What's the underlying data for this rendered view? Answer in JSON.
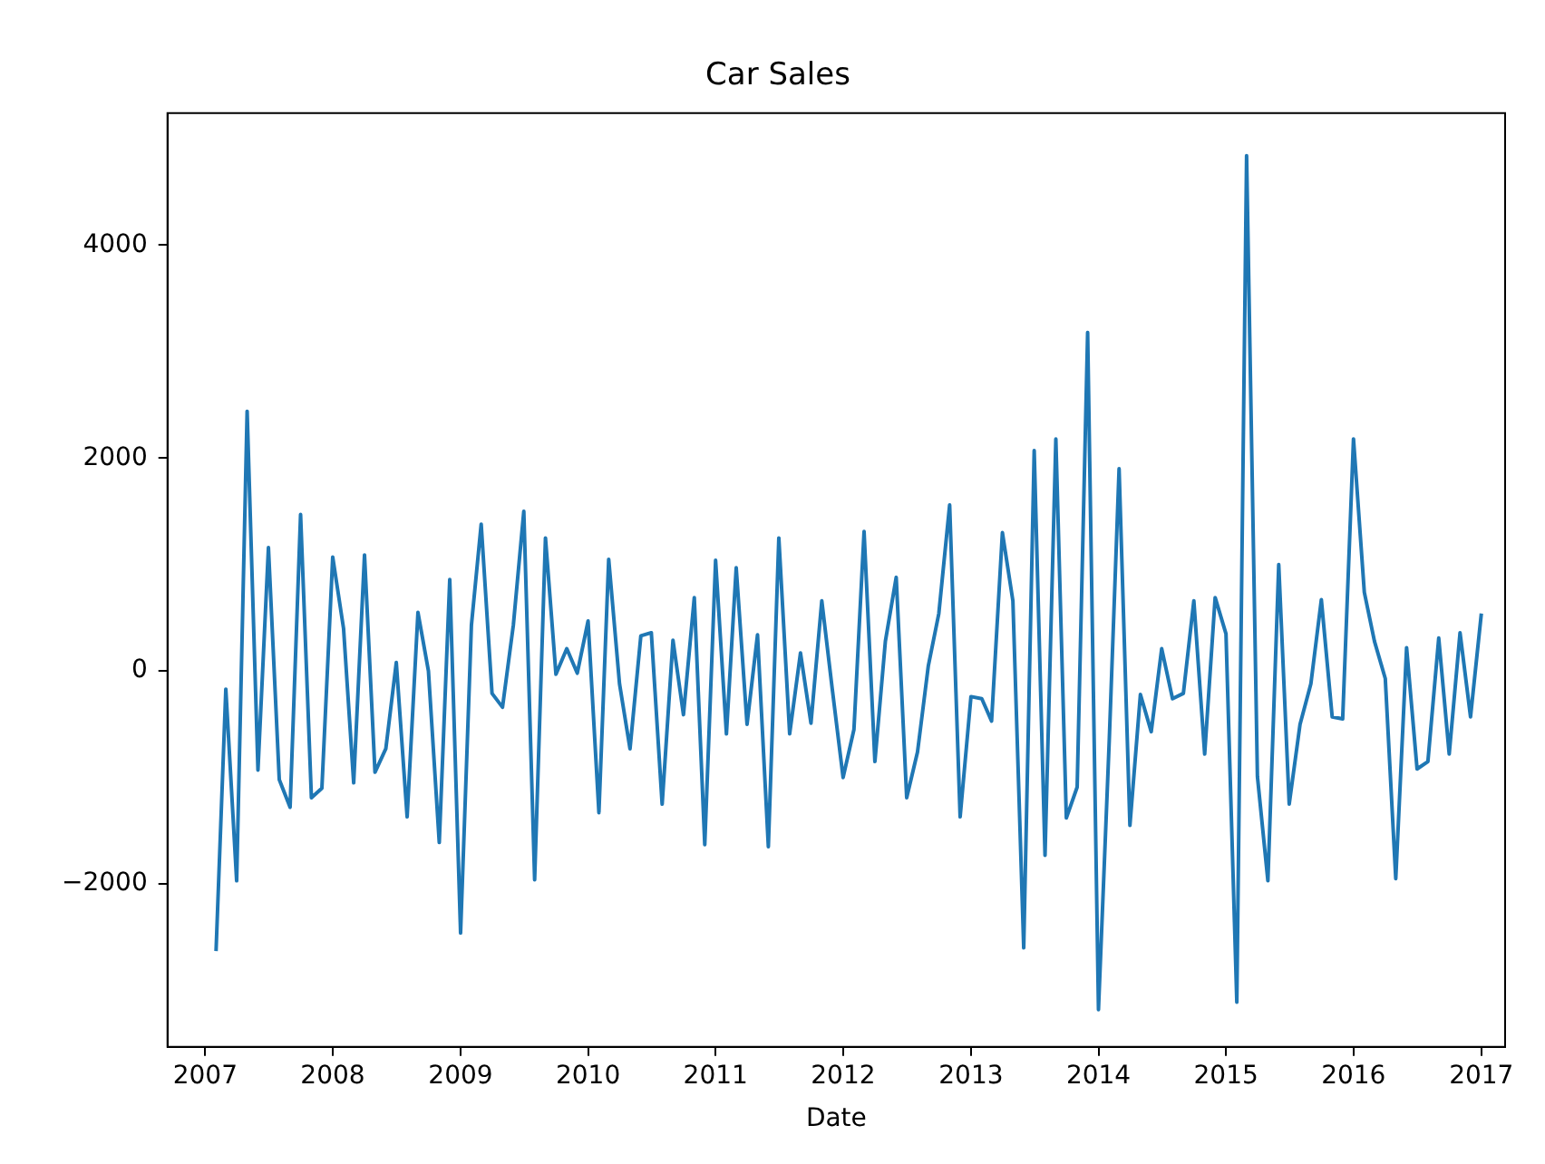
{
  "chart_data": {
    "type": "line",
    "title": "Car Sales",
    "xlabel": "Date",
    "x": [
      "2007-02",
      "2007-03",
      "2007-04",
      "2007-05",
      "2007-06",
      "2007-07",
      "2007-08",
      "2007-09",
      "2007-10",
      "2007-11",
      "2007-12",
      "2008-01",
      "2008-02",
      "2008-03",
      "2008-04",
      "2008-05",
      "2008-06",
      "2008-07",
      "2008-08",
      "2008-09",
      "2008-10",
      "2008-11",
      "2008-12",
      "2009-01",
      "2009-02",
      "2009-03",
      "2009-04",
      "2009-05",
      "2009-06",
      "2009-07",
      "2009-08",
      "2009-09",
      "2009-10",
      "2009-11",
      "2009-12",
      "2010-01",
      "2010-02",
      "2010-03",
      "2010-04",
      "2010-05",
      "2010-06",
      "2010-07",
      "2010-08",
      "2010-09",
      "2010-10",
      "2010-11",
      "2010-12",
      "2011-01",
      "2011-02",
      "2011-03",
      "2011-04",
      "2011-05",
      "2011-06",
      "2011-07",
      "2011-08",
      "2011-09",
      "2011-10",
      "2011-11",
      "2011-12",
      "2012-01",
      "2012-02",
      "2012-03",
      "2012-04",
      "2012-05",
      "2012-06",
      "2012-07",
      "2012-08",
      "2012-09",
      "2012-10",
      "2012-11",
      "2012-12",
      "2013-01",
      "2013-02",
      "2013-03",
      "2013-04",
      "2013-05",
      "2013-06",
      "2013-07",
      "2013-08",
      "2013-09",
      "2013-10",
      "2013-11",
      "2013-12",
      "2014-01",
      "2014-02",
      "2014-03",
      "2014-04",
      "2014-05",
      "2014-06",
      "2014-07",
      "2014-08",
      "2014-09",
      "2014-10",
      "2014-11",
      "2014-12",
      "2015-01",
      "2015-02",
      "2015-03",
      "2015-04",
      "2015-05",
      "2015-06",
      "2015-07",
      "2015-08",
      "2015-09",
      "2015-10",
      "2015-11",
      "2015-12",
      "2016-01",
      "2016-02",
      "2016-03",
      "2016-04",
      "2016-05",
      "2016-06",
      "2016-07",
      "2016-08",
      "2016-09",
      "2016-10",
      "2016-11",
      "2016-12",
      "2017-01"
    ],
    "series": [
      {
        "color": "#1f77b4",
        "values": [
          -2630,
          -170,
          -1970,
          2440,
          -930,
          1160,
          -1020,
          -1280,
          1470,
          -1190,
          -1100,
          1070,
          400,
          -1050,
          1090,
          -950,
          -730,
          80,
          -1370,
          550,
          0,
          -1610,
          860,
          -2460,
          430,
          1380,
          -210,
          -340,
          430,
          1500,
          -1960,
          1250,
          -30,
          210,
          -20,
          470,
          -1330,
          1050,
          -120,
          -730,
          330,
          360,
          -1250,
          290,
          -410,
          690,
          -1630,
          1040,
          -590,
          970,
          -500,
          340,
          -1650,
          1250,
          -590,
          170,
          -490,
          660,
          -170,
          -1000,
          -550,
          1310,
          -850,
          280,
          880,
          -1190,
          -760,
          50,
          540,
          1560,
          -1370,
          -240,
          -260,
          -470,
          1300,
          660,
          -2600,
          2070,
          -1730,
          2180,
          -1380,
          -1090,
          3180,
          -3180,
          -640,
          1900,
          -1450,
          -220,
          -570,
          210,
          -260,
          -210,
          660,
          -780,
          690,
          350,
          -3110,
          4840,
          -990,
          -1970,
          1000,
          -1250,
          -500,
          -120,
          670,
          -430,
          -450,
          2180,
          740,
          280,
          -70,
          -1950,
          220,
          -920,
          -850,
          310,
          -780,
          360,
          -430,
          540
        ]
      }
    ],
    "xlim": [
      "2006-09-15",
      "2017-03-10"
    ],
    "xticks": [
      {
        "value": "2007",
        "label": "2007"
      },
      {
        "value": "2008",
        "label": "2008"
      },
      {
        "value": "2009",
        "label": "2009"
      },
      {
        "value": "2010",
        "label": "2010"
      },
      {
        "value": "2011",
        "label": "2011"
      },
      {
        "value": "2012",
        "label": "2012"
      },
      {
        "value": "2013",
        "label": "2013"
      },
      {
        "value": "2014",
        "label": "2014"
      },
      {
        "value": "2015",
        "label": "2015"
      },
      {
        "value": "2016",
        "label": "2016"
      },
      {
        "value": "2017",
        "label": "2017"
      }
    ],
    "ylim": [
      -3530,
      5240
    ],
    "yticks": [
      {
        "value": -2000,
        "label": "−2000"
      },
      0,
      2000,
      4000
    ],
    "grid": false,
    "legend": false,
    "marker": "none",
    "line_style": "solid"
  }
}
